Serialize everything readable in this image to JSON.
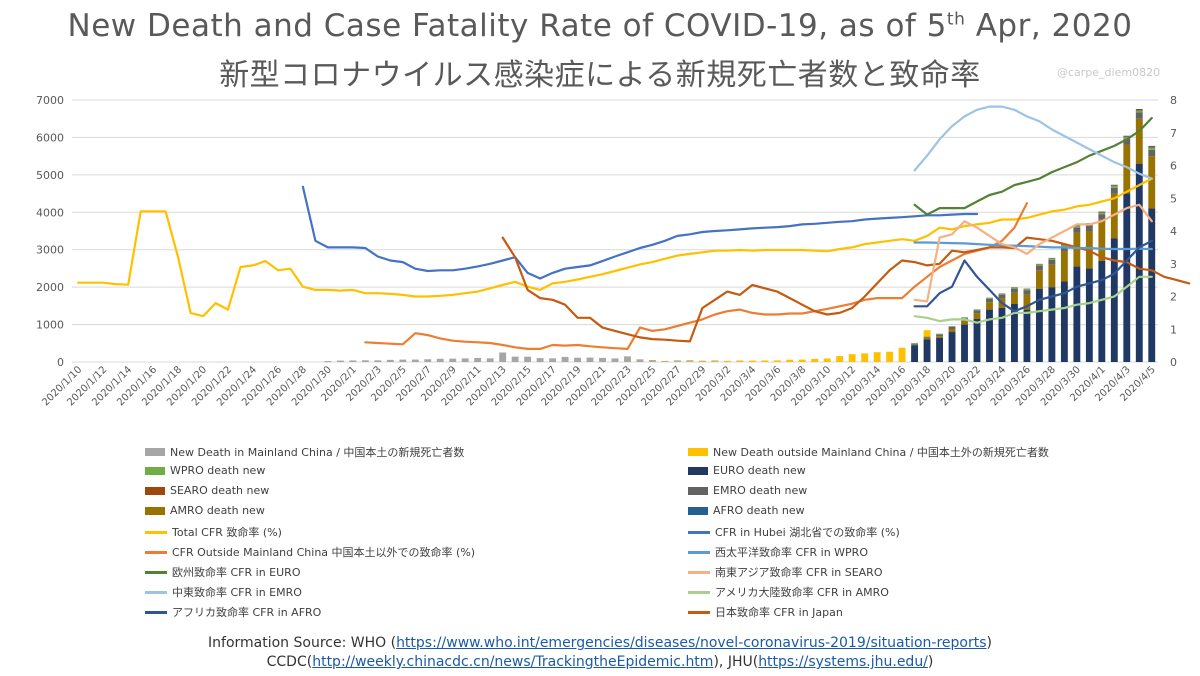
{
  "title_main": "New Death and Case Fatality Rate of COVID-19, as of 5",
  "title_sup": "th",
  "title_end": " Apr, 2020",
  "subtitle": "新型コロナウイルス感染症による新規死亡者数と致命率",
  "watermark": "@carpe_diem0820",
  "source": {
    "line1_prefix": "Information Source: WHO (",
    "who_url": "https://www.who.int/emergencies/diseases/novel-coronavirus-2019/situation-reports",
    "line1_suffix": ")",
    "line2_prefix": "CCDC(",
    "ccdc_url": "http://weekly.chinacdc.cn/news/TrackingtheEpidemic.htm",
    "line2_mid": "), JHU(",
    "jhu_url": "https://systems.jhu.edu/",
    "line2_suffix": ")"
  },
  "chart_data": {
    "type": "bar+line",
    "title": "New Death and Case Fatality Rate of COVID-19, as of 5th Apr, 2020",
    "y_left": {
      "min": 0,
      "max": 7000,
      "ticks": [
        0,
        1000,
        2000,
        3000,
        4000,
        5000,
        6000,
        7000
      ]
    },
    "y_right": {
      "min": 0,
      "max": 8,
      "ticks": [
        0,
        1,
        2,
        3,
        4,
        5,
        6,
        7,
        8
      ],
      "unit": "%"
    },
    "x": {
      "start": "2020-01-10",
      "end": "2020-04-05",
      "tick_labels": [
        "2020/1/10",
        "2020/1/12",
        "2020/1/14",
        "2020/1/16",
        "2020/1/18",
        "2020/1/20",
        "2020/1/22",
        "2020/1/24",
        "2020/1/26",
        "2020/1/28",
        "2020/1/30",
        "2020/2/1",
        "2020/2/3",
        "2020/2/5",
        "2020/2/7",
        "2020/2/9",
        "2020/2/11",
        "2020/2/13",
        "2020/2/15",
        "2020/2/17",
        "2020/2/19",
        "2020/2/21",
        "2020/2/23",
        "2020/2/25",
        "2020/2/27",
        "2020/2/29",
        "2020/3/2",
        "2020/3/4",
        "2020/3/6",
        "2020/3/8",
        "2020/3/10",
        "2020/3/12",
        "2020/3/14",
        "2020/3/16",
        "2020/3/18",
        "2020/3/20",
        "2020/3/22",
        "2020/3/24",
        "2020/3/26",
        "2020/3/28",
        "2020/3/30",
        "2020/4/1",
        "2020/4/3",
        "2020/4/5"
      ]
    },
    "grid": true,
    "legend_placement": "bottom",
    "china_bars": {
      "name": "New Death in Mainland China / 中国本土の新規死亡者数",
      "color": "#a6a6a6",
      "values": [
        0,
        0,
        0,
        0,
        0,
        0,
        0,
        0,
        0,
        0,
        0,
        0,
        0,
        0,
        0,
        0,
        0,
        0,
        0,
        0,
        26,
        38,
        42,
        46,
        45,
        57,
        64,
        65,
        73,
        86,
        89,
        97,
        108,
        97,
        254,
        143,
        142,
        105,
        98,
        136,
        114,
        118,
        109,
        97,
        150,
        71,
        52,
        29,
        44,
        47,
        35,
        42,
        31,
        38,
        31,
        30,
        28,
        27,
        22,
        17,
        22,
        11,
        7,
        14,
        10,
        14,
        13,
        11,
        8,
        3,
        7,
        6,
        9,
        7,
        4,
        6,
        5,
        4,
        3,
        4,
        6,
        5,
        5,
        4,
        6,
        8,
        3
      ]
    },
    "outside_bars": {
      "name": "New Death outside Mainland China / 中国本土外の新規死亡者数",
      "color": "#ffc000",
      "values": [
        0,
        0,
        0,
        0,
        0,
        0,
        0,
        0,
        0,
        0,
        0,
        0,
        0,
        0,
        0,
        0,
        0,
        0,
        0,
        0,
        0,
        0,
        0,
        1,
        0,
        0,
        0,
        0,
        1,
        0,
        0,
        0,
        0,
        1,
        0,
        1,
        0,
        0,
        0,
        1,
        0,
        1,
        2,
        2,
        3,
        5,
        8,
        11,
        13,
        17,
        19,
        21,
        25,
        30,
        37,
        41,
        43,
        61,
        64,
        84,
        94,
        158,
        209,
        230,
        262,
        275,
        380,
        344,
        850,
        0,
        0,
        0,
        0,
        0,
        0,
        0,
        0,
        0,
        0,
        0,
        0,
        0,
        0,
        0,
        0,
        0,
        0
      ]
    },
    "region_bars": {
      "start": "2020-03-17",
      "stack_order": [
        "EURO",
        "AMRO",
        "EMRO",
        "WPRO",
        "SEARO",
        "AFRO"
      ],
      "colors": {
        "EURO": "#203864",
        "AMRO": "#997300",
        "EMRO": "#636363",
        "WPRO": "#70ad47",
        "SEARO": "#9e480e",
        "AFRO": "#255e91"
      },
      "series": [
        {
          "name": "WPRO death new",
          "values": [
            15,
            15,
            14,
            16,
            19,
            20,
            22,
            25,
            28,
            30,
            33,
            35,
            38,
            40,
            42,
            45,
            48,
            50,
            55,
            58
          ]
        },
        {
          "name": "EURO death new",
          "values": [
            450,
            600,
            650,
            800,
            1000,
            1150,
            1400,
            1450,
            1550,
            1400,
            1950,
            2000,
            2150,
            2550,
            2500,
            2700,
            3300,
            4500,
            5300,
            4100
          ]
        },
        {
          "name": "SEARO death new",
          "values": [
            1,
            2,
            2,
            3,
            3,
            4,
            5,
            6,
            7,
            8,
            9,
            10,
            12,
            13,
            15,
            17,
            20,
            22,
            25,
            28
          ]
        },
        {
          "name": "EMRO death new",
          "values": [
            30,
            40,
            50,
            60,
            70,
            80,
            90,
            100,
            110,
            120,
            125,
            130,
            135,
            140,
            145,
            150,
            155,
            160,
            165,
            170
          ]
        },
        {
          "name": "AMRO death new",
          "values": [
            10,
            20,
            40,
            80,
            100,
            150,
            200,
            250,
            300,
            400,
            500,
            600,
            800,
            900,
            1000,
            1100,
            1200,
            1300,
            1200,
            1400
          ]
        },
        {
          "name": "AFRO death new",
          "values": [
            0,
            1,
            1,
            1,
            2,
            2,
            3,
            3,
            4,
            5,
            5,
            6,
            7,
            8,
            9,
            10,
            12,
            13,
            15,
            17
          ]
        }
      ]
    },
    "lines": [
      {
        "name": "Total CFR 致命率 (%)",
        "color": "#ffc000",
        "start": "2020-01-10",
        "values": [
          2.42,
          2.42,
          2.42,
          2.38,
          2.36,
          4.6,
          4.6,
          4.6,
          3.2,
          1.5,
          1.4,
          1.8,
          1.6,
          2.9,
          2.95,
          3.08,
          2.8,
          2.85,
          2.3,
          2.2,
          2.2,
          2.18,
          2.2,
          2.1,
          2.1,
          2.08,
          2.05,
          2.0,
          2.0,
          2.02,
          2.05,
          2.1,
          2.15,
          2.25,
          2.35,
          2.45,
          2.3,
          2.2,
          2.4,
          2.45,
          2.52,
          2.6,
          2.68,
          2.78,
          2.88,
          2.98,
          3.05,
          3.15,
          3.25,
          3.3,
          3.35,
          3.4,
          3.4,
          3.42,
          3.4,
          3.42,
          3.42,
          3.42,
          3.42,
          3.4,
          3.38,
          3.45,
          3.5,
          3.6,
          3.65,
          3.7,
          3.75,
          3.7,
          3.85,
          4.1,
          4.05,
          4.15,
          4.2,
          4.25,
          4.35,
          4.35,
          4.4,
          4.5,
          4.6,
          4.65,
          4.75,
          4.8,
          4.9,
          5.0,
          5.2,
          5.4,
          5.6
        ]
      },
      {
        "name": "CFR in Hubei 湖北省での致命率 (%)",
        "color": "#4472c4",
        "start": "2020-01-28",
        "values": [
          5.35,
          3.7,
          3.5,
          3.5,
          3.5,
          3.48,
          3.22,
          3.1,
          3.05,
          2.85,
          2.78,
          2.8,
          2.8,
          2.85,
          2.92,
          3.0,
          3.1,
          3.2,
          2.72,
          2.55,
          2.72,
          2.85,
          2.9,
          2.95,
          3.08,
          3.22,
          3.35,
          3.48,
          3.58,
          3.7,
          3.85,
          3.9,
          3.97,
          4.0,
          4.02,
          4.05,
          4.08,
          4.1,
          4.12,
          4.15,
          4.2,
          4.22,
          4.25,
          4.28,
          4.3,
          4.35,
          4.38,
          4.4,
          4.42,
          4.45,
          4.48,
          4.48,
          4.5,
          4.52,
          4.52
        ]
      },
      {
        "name": "CFR Outside Mainland China 中国本土以外での致命率 (%)",
        "color": "#ed7d31",
        "start": "2020-02-02",
        "values": [
          0.6,
          0.58,
          0.56,
          0.54,
          0.88,
          0.82,
          0.72,
          0.65,
          0.62,
          0.6,
          0.58,
          0.52,
          0.45,
          0.4,
          0.4,
          0.52,
          0.5,
          0.52,
          0.48,
          0.45,
          0.42,
          0.4,
          1.05,
          0.95,
          1.0,
          1.1,
          1.2,
          1.3,
          1.45,
          1.55,
          1.6,
          1.5,
          1.45,
          1.45,
          1.48,
          1.48,
          1.55,
          1.62,
          1.7,
          1.78,
          1.9,
          1.95,
          1.95,
          1.95,
          2.3,
          2.6,
          2.9,
          3.1,
          3.3,
          3.4,
          3.5,
          3.7,
          4.1,
          4.85
        ]
      },
      {
        "name": "日本致命率 CFR in Japan",
        "color": "#c55a11",
        "start": "2020-02-13",
        "values": [
          3.8,
          3.2,
          2.2,
          1.95,
          1.9,
          1.75,
          1.35,
          1.35,
          1.05,
          0.95,
          0.85,
          0.75,
          0.7,
          0.68,
          0.65,
          0.63,
          1.65,
          1.9,
          2.15,
          2.05,
          2.35,
          2.25,
          2.15,
          1.95,
          1.75,
          1.55,
          1.45,
          1.5,
          1.65,
          2.0,
          2.4,
          2.8,
          3.1,
          3.05,
          2.95,
          3.0,
          3.4,
          3.35,
          3.42,
          3.5,
          3.5,
          3.48,
          3.8,
          3.75,
          3.7,
          3.6,
          3.5,
          3.4,
          3.2,
          3.1,
          3.05,
          2.85,
          2.8,
          2.6,
          2.5,
          2.4
        ]
      },
      {
        "name": "欧州致命率 CFR in EURO",
        "color": "#548235",
        "start": "2020-03-17",
        "values": [
          4.8,
          4.5,
          4.7,
          4.7,
          4.7,
          4.9,
          5.1,
          5.2,
          5.4,
          5.5,
          5.6,
          5.8,
          5.95,
          6.1,
          6.3,
          6.45,
          6.6,
          6.8,
          7.05,
          7.45
        ]
      },
      {
        "name": "西太平洋致命率 CFR in WPRO",
        "color": "#5b9bd5",
        "start": "2020-03-17",
        "values": [
          3.65,
          3.65,
          3.64,
          3.63,
          3.62,
          3.6,
          3.58,
          3.56,
          3.55,
          3.54,
          3.52,
          3.5,
          3.5,
          3.48,
          3.48,
          3.46,
          3.45,
          3.45,
          3.46,
          3.45
        ]
      },
      {
        "name": "南東アジア致命率 CFR in SEARO",
        "color": "#f4b183",
        "start": "2020-03-17",
        "values": [
          1.9,
          1.85,
          3.8,
          3.9,
          4.3,
          4.1,
          3.85,
          3.6,
          3.5,
          3.3,
          3.6,
          3.8,
          4.0,
          4.2,
          4.2,
          4.3,
          4.5,
          4.7,
          4.8,
          4.3
        ]
      },
      {
        "name": "中東致命率 CFR in EMRO",
        "color": "#9dc3e6",
        "start": "2020-03-17",
        "values": [
          5.85,
          6.3,
          6.8,
          7.2,
          7.5,
          7.7,
          7.8,
          7.8,
          7.7,
          7.5,
          7.35,
          7.1,
          6.9,
          6.7,
          6.5,
          6.3,
          6.1,
          5.95,
          5.75,
          5.6
        ]
      },
      {
        "name": "アメリカ大陸致命率 CFR in AMRO",
        "color": "#a9d18e",
        "start": "2020-03-17",
        "values": [
          1.4,
          1.35,
          1.25,
          1.3,
          1.3,
          1.2,
          1.3,
          1.35,
          1.5,
          1.5,
          1.55,
          1.6,
          1.65,
          1.75,
          1.8,
          1.9,
          2.0,
          2.3,
          2.6,
          2.6
        ]
      },
      {
        "name": "アフリカ致命率 CFR in AFRO",
        "color": "#2f5597",
        "start": "2020-03-17",
        "values": [
          1.7,
          1.7,
          2.1,
          2.3,
          3.1,
          2.6,
          2.2,
          1.8,
          1.55,
          1.7,
          1.9,
          2.0,
          2.1,
          2.3,
          2.4,
          2.5,
          2.7,
          3.1,
          3.5,
          3.7
        ]
      }
    ]
  },
  "legend": [
    {
      "name": "New Death in Mainland China / 中国本土の新規死亡者数",
      "kind": "square",
      "color": "#a6a6a6"
    },
    {
      "name": "New Death outside Mainland China / 中国本土外の新規死亡者数",
      "kind": "square",
      "color": "#ffc000"
    },
    {
      "name": "WPRO death new",
      "kind": "square",
      "color": "#70ad47"
    },
    {
      "name": "EURO death new",
      "kind": "square",
      "color": "#203864"
    },
    {
      "name": "SEARO death new",
      "kind": "square",
      "color": "#9e480e"
    },
    {
      "name": "EMRO death new",
      "kind": "square",
      "color": "#636363"
    },
    {
      "name": "AMRO death new",
      "kind": "square",
      "color": "#997300"
    },
    {
      "name": "AFRO death new",
      "kind": "square",
      "color": "#255e91"
    },
    {
      "name": "Total CFR 致命率 (%)",
      "kind": "line",
      "color": "#ffc000"
    },
    {
      "name": "CFR in Hubei 湖北省での致命率 (%)",
      "kind": "line",
      "color": "#4472c4"
    },
    {
      "name": "CFR Outside Mainland China 中国本土以外での致命率 (%)",
      "kind": "line",
      "color": "#ed7d31"
    },
    {
      "name": "西太平洋致命率 CFR in WPRO",
      "kind": "line",
      "color": "#5b9bd5"
    },
    {
      "name": "欧州致命率 CFR in EURO",
      "kind": "line",
      "color": "#548235"
    },
    {
      "name": "南東アジア致命率 CFR in SEARO",
      "kind": "line",
      "color": "#f4b183"
    },
    {
      "name": "中東致命率 CFR in EMRO",
      "kind": "line",
      "color": "#9dc3e6"
    },
    {
      "name": "アメリカ大陸致命率 CFR in AMRO",
      "kind": "line",
      "color": "#a9d18e"
    },
    {
      "name": "アフリカ致命率 CFR in AFRO",
      "kind": "line",
      "color": "#2f5597"
    },
    {
      "name": "日本致命率 CFR in Japan",
      "kind": "line",
      "color": "#c55a11"
    }
  ]
}
